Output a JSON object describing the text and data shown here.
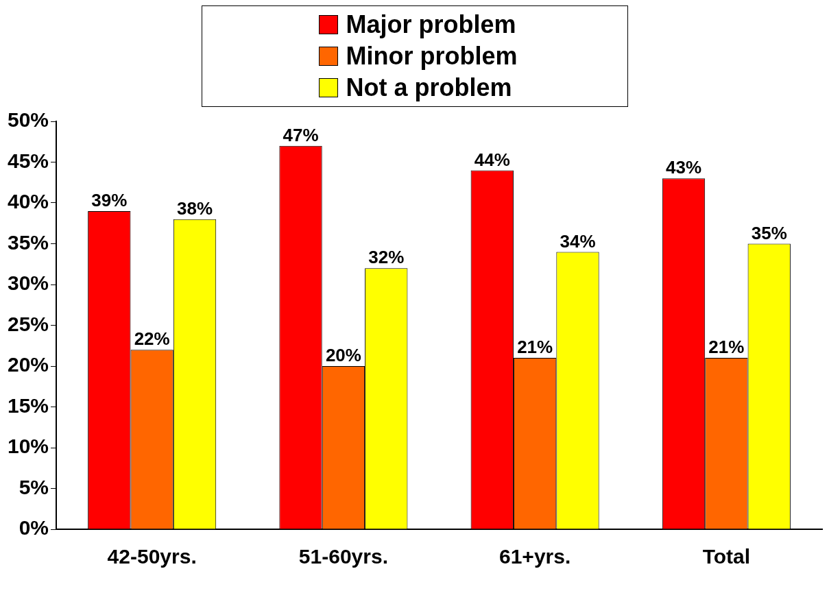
{
  "chart_data": {
    "type": "bar",
    "categories": [
      "42-50yrs.",
      "51-60yrs.",
      "61+yrs.",
      "Total"
    ],
    "series": [
      {
        "name": "Major problem",
        "color": "#ff0000",
        "values": [
          39,
          47,
          44,
          43
        ],
        "value_labels": [
          "39%",
          "47%",
          "44%",
          "43%"
        ]
      },
      {
        "name": "Minor problem",
        "color": "#ff6600",
        "values": [
          22,
          20,
          21,
          21
        ],
        "value_labels": [
          "22%",
          "20%",
          "21%",
          "21%"
        ]
      },
      {
        "name": "Not a problem",
        "color": "#ffff00",
        "values": [
          38,
          32,
          34,
          35
        ],
        "value_labels": [
          "38%",
          "32%",
          "34%",
          "35%"
        ]
      }
    ],
    "ylim": [
      0,
      50
    ],
    "yticks": [
      {
        "value": 0,
        "label": "0%"
      },
      {
        "value": 5,
        "label": "5%"
      },
      {
        "value": 10,
        "label": "10%"
      },
      {
        "value": 15,
        "label": "15%"
      },
      {
        "value": 20,
        "label": "20%"
      },
      {
        "value": 25,
        "label": "25%"
      },
      {
        "value": 30,
        "label": "30%"
      },
      {
        "value": 35,
        "label": "35%"
      },
      {
        "value": 40,
        "label": "40%"
      },
      {
        "value": 45,
        "label": "45%"
      },
      {
        "value": 50,
        "label": "50%"
      }
    ],
    "grid": false,
    "legend": "top"
  }
}
